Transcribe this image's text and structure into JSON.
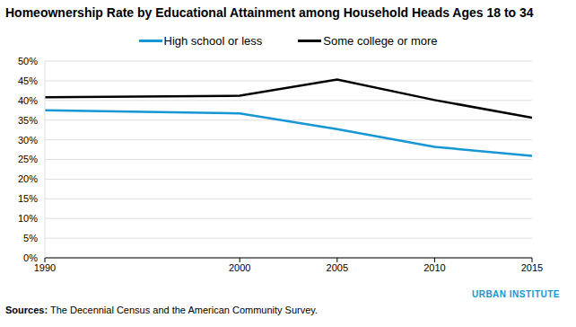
{
  "chart_data": {
    "type": "line",
    "title": "Homeownership Rate by Educational Attainment among Household Heads Ages 18 to 34",
    "x": [
      1990,
      2000,
      2005,
      2010,
      2015
    ],
    "series": [
      {
        "name": "High school or less",
        "color": "#1696d2",
        "values": [
          37.5,
          36.7,
          32.7,
          28.2,
          25.9
        ]
      },
      {
        "name": "Some college or more",
        "color": "#000000",
        "values": [
          40.8,
          41.2,
          45.3,
          40.1,
          35.6
        ]
      }
    ],
    "xlim": [
      1990,
      2015
    ],
    "xticks": [
      1990,
      2000,
      2005,
      2010,
      2015
    ],
    "ylim": [
      0,
      50
    ],
    "yticks": [
      {
        "value": 0,
        "label": "0%"
      },
      {
        "value": 5,
        "label": "5%"
      },
      {
        "value": 10,
        "label": "10%"
      },
      {
        "value": 15,
        "label": "15%"
      },
      {
        "value": 20,
        "label": "20%"
      },
      {
        "value": 25,
        "label": "25%"
      },
      {
        "value": 30,
        "label": "30%"
      },
      {
        "value": 35,
        "label": "35%"
      },
      {
        "value": 40,
        "label": "40%"
      },
      {
        "value": 45,
        "label": "45%"
      },
      {
        "value": 50,
        "label": "50%"
      }
    ],
    "grid": true,
    "legend": "top",
    "source_label": "Sources:",
    "source": "The Decennial Census and the American Community Survey.",
    "branding": "URBAN INSTITUTE"
  }
}
